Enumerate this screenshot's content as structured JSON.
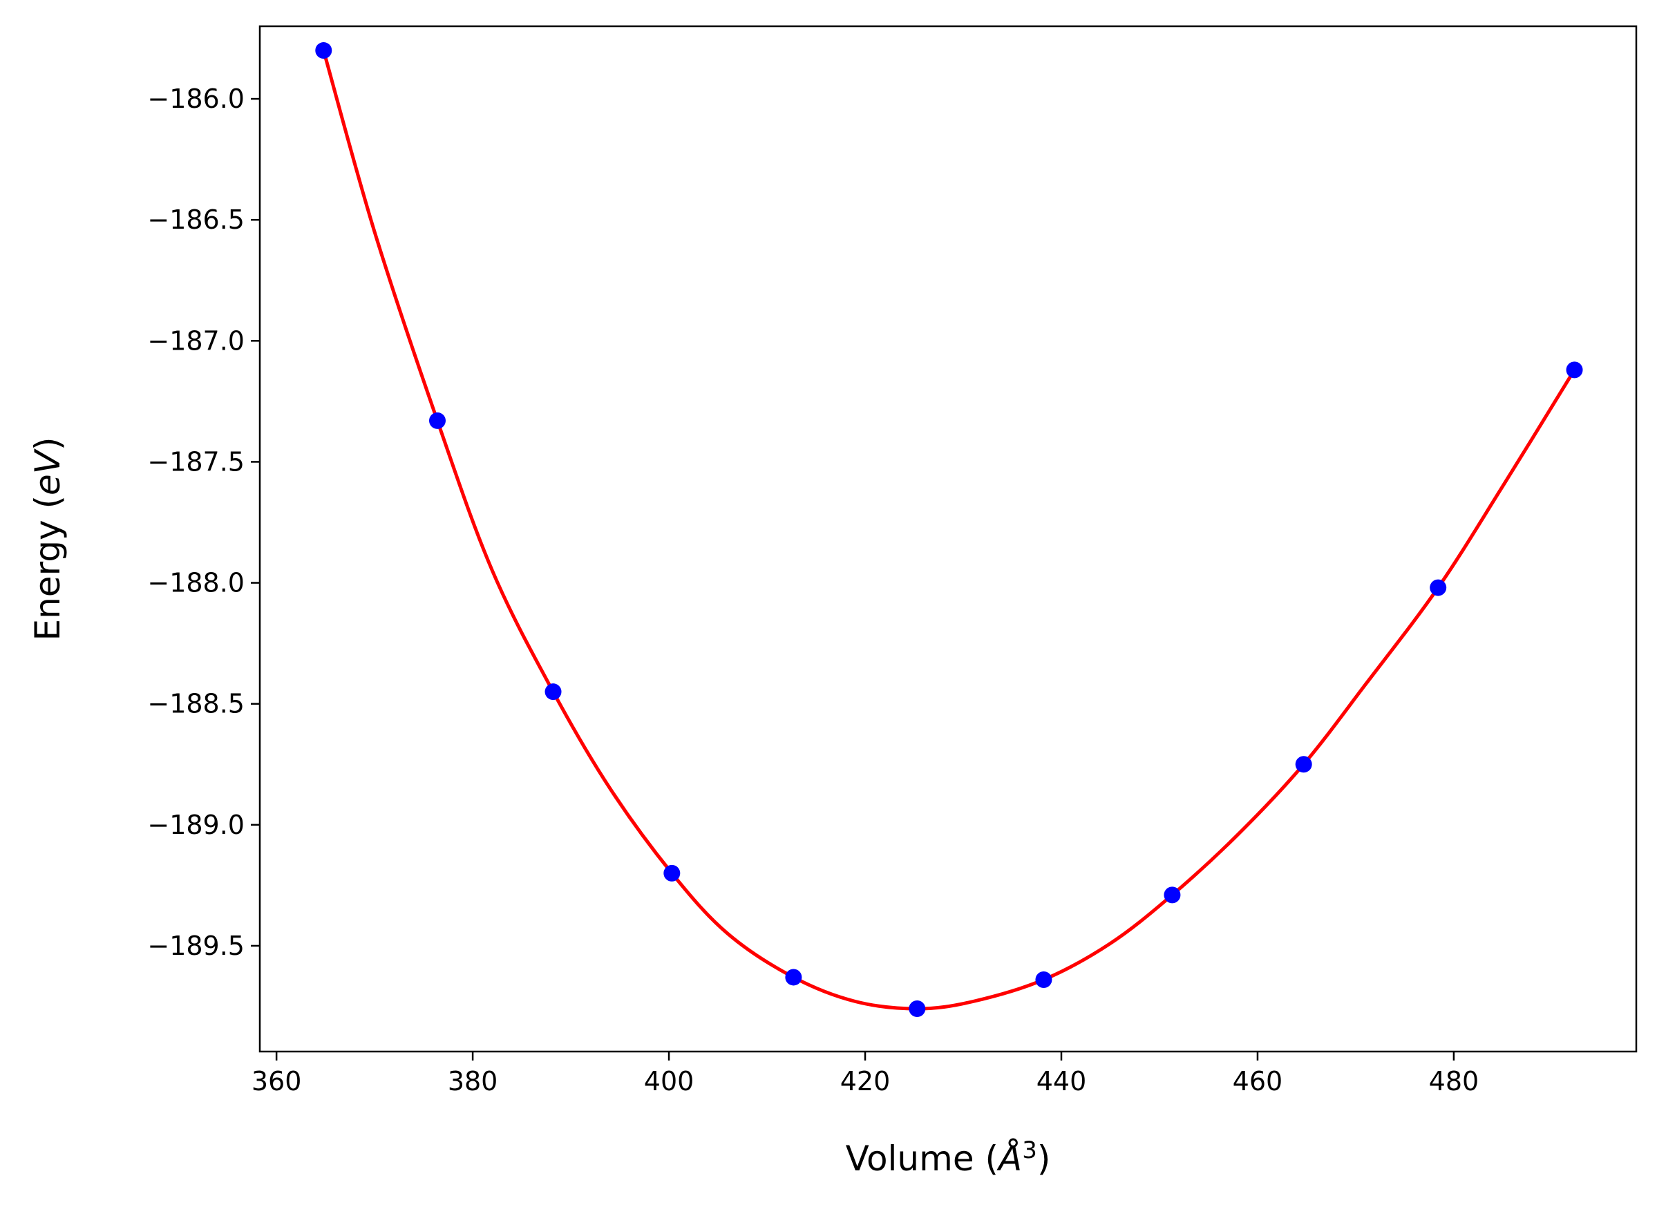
{
  "chart_data": {
    "type": "scatter",
    "title": "",
    "xlabel": "Volume",
    "xlabel_unit": "Å",
    "xlabel_unit_exp": "3",
    "ylabel": "Energy",
    "ylabel_unit": "eV",
    "xlim": [
      358.3,
      498.6
    ],
    "ylim": [
      -189.937,
      -185.7
    ],
    "xticks": [
      360,
      380,
      400,
      420,
      440,
      460,
      480
    ],
    "xtick_labels": [
      "360",
      "380",
      "400",
      "420",
      "440",
      "460",
      "480"
    ],
    "yticks": [
      -186.0,
      -186.5,
      -187.0,
      -187.5,
      -188.0,
      -188.5,
      -189.0,
      -189.5
    ],
    "ytick_labels": [
      "−186.0",
      "−186.5",
      "−187.0",
      "−187.5",
      "−188.0",
      "−188.5",
      "−189.0",
      "−189.5"
    ],
    "grid": false,
    "legend": "none",
    "series": [
      {
        "kind": "points",
        "color": "#0000ff",
        "x": [
          364.8,
          376.4,
          388.2,
          400.3,
          412.7,
          425.3,
          438.2,
          451.3,
          464.7,
          478.4,
          492.3
        ],
        "y": [
          -185.8,
          -187.33,
          -188.45,
          -189.2,
          -189.63,
          -189.76,
          -189.64,
          -189.29,
          -188.75,
          -188.02,
          -187.12
        ]
      },
      {
        "kind": "fit-curve",
        "color": "#ff0000",
        "x": [
          364.8,
          370.0,
          376.4,
          382.0,
          388.2,
          394.0,
          400.3,
          406.0,
          412.7,
          419.0,
          425.3,
          431.0,
          438.2,
          445.0,
          451.3,
          458.0,
          464.7,
          471.0,
          478.4,
          485.0,
          492.3
        ],
        "y": [
          -185.8,
          -186.55,
          -187.33,
          -187.95,
          -188.45,
          -188.85,
          -189.2,
          -189.45,
          -189.63,
          -189.73,
          -189.76,
          -189.73,
          -189.64,
          -189.49,
          -189.29,
          -189.04,
          -188.75,
          -188.42,
          -188.02,
          -187.6,
          -187.12
        ]
      }
    ]
  }
}
